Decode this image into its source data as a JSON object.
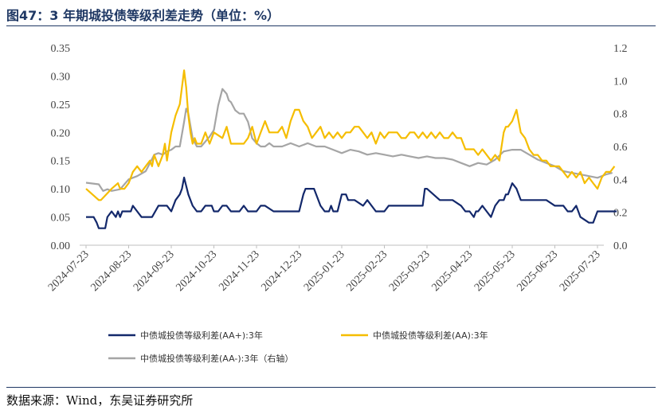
{
  "title": "图47：3 年期城投债等级利差走势（单位：%）",
  "source": "数据来源：Wind，东吴证券研究所",
  "chart_data": {
    "type": "line",
    "x_ticks": [
      "2024-07-23",
      "2024-08-23",
      "2024-09-23",
      "2024-10-23",
      "2024-11-23",
      "2024-12-23",
      "2025-01-23",
      "2025-02-23",
      "2025-03-23",
      "2025-04-23",
      "2025-05-23",
      "2025-06-23",
      "2025-07-23"
    ],
    "y_left": {
      "range": [
        0,
        0.35
      ],
      "ticks": [
        "0.00",
        "0.05",
        "0.10",
        "0.15",
        "0.20",
        "0.25",
        "0.30",
        "0.35"
      ]
    },
    "y_right": {
      "range": [
        0,
        1.2
      ],
      "ticks": [
        "0.0",
        "0.2",
        "0.4",
        "0.6",
        "0.8",
        "1.0",
        "1.2"
      ]
    },
    "series": [
      {
        "name": "中债城投债等级利差(AA+):3年",
        "axis": "left",
        "color": "#13286b",
        "x_months": [
          0,
          0.18,
          0.25,
          0.3,
          0.45,
          0.5,
          0.6,
          0.7,
          0.75,
          0.8,
          0.85,
          0.9,
          0.95,
          1.05,
          1.1,
          1.2,
          1.3,
          1.4,
          1.55,
          1.7,
          1.8,
          1.9,
          2.0,
          2.1,
          2.2,
          2.25,
          2.3,
          2.4,
          2.5,
          2.6,
          2.7,
          2.8,
          2.9,
          2.95,
          3.0,
          3.1,
          3.2,
          3.3,
          3.4,
          3.5,
          3.6,
          3.7,
          3.8,
          3.9,
          4.0,
          4.1,
          4.2,
          4.4,
          4.5,
          4.6,
          4.8,
          5.0,
          5.1,
          5.15,
          5.2,
          5.35,
          5.5,
          5.6,
          5.7,
          5.75,
          5.8,
          5.9,
          6.0,
          6.1,
          6.15,
          6.3,
          6.5,
          6.6,
          6.8,
          6.9,
          7.0,
          7.1,
          7.2,
          7.4,
          7.6,
          7.8,
          7.9,
          7.95,
          8.0,
          8.3,
          8.4,
          8.6,
          8.8,
          8.9,
          9.0,
          9.1,
          9.15,
          9.2,
          9.3,
          9.4,
          9.5,
          9.6,
          9.7,
          9.8,
          9.85,
          9.9,
          10.0,
          10.1,
          10.2,
          10.3,
          10.4,
          10.5,
          10.6,
          10.8,
          11.0,
          11.2,
          11.3,
          11.4,
          11.5,
          11.6,
          11.8,
          11.9,
          11.95,
          12.0,
          12.1,
          12.2,
          12.3,
          12.45
        ],
        "values": [
          0.05,
          0.05,
          0.04,
          0.03,
          0.03,
          0.05,
          0.06,
          0.05,
          0.06,
          0.05,
          0.06,
          0.06,
          0.06,
          0.06,
          0.07,
          0.06,
          0.05,
          0.05,
          0.05,
          0.07,
          0.07,
          0.07,
          0.06,
          0.08,
          0.09,
          0.1,
          0.12,
          0.09,
          0.07,
          0.06,
          0.06,
          0.07,
          0.07,
          0.07,
          0.06,
          0.06,
          0.07,
          0.07,
          0.06,
          0.06,
          0.06,
          0.07,
          0.06,
          0.06,
          0.06,
          0.07,
          0.07,
          0.06,
          0.06,
          0.06,
          0.06,
          0.06,
          0.09,
          0.1,
          0.1,
          0.1,
          0.07,
          0.06,
          0.06,
          0.07,
          0.06,
          0.06,
          0.09,
          0.09,
          0.08,
          0.08,
          0.07,
          0.08,
          0.06,
          0.06,
          0.06,
          0.07,
          0.07,
          0.07,
          0.07,
          0.07,
          0.07,
          0.1,
          0.1,
          0.08,
          0.08,
          0.08,
          0.07,
          0.06,
          0.06,
          0.05,
          0.06,
          0.06,
          0.07,
          0.06,
          0.05,
          0.07,
          0.08,
          0.08,
          0.09,
          0.09,
          0.11,
          0.1,
          0.08,
          0.08,
          0.08,
          0.08,
          0.08,
          0.08,
          0.07,
          0.07,
          0.06,
          0.06,
          0.07,
          0.05,
          0.04,
          0.04,
          0.05,
          0.06,
          0.06,
          0.06,
          0.06,
          0.06
        ]
      },
      {
        "name": "中债城投债等级利差(AA):3年",
        "axis": "left",
        "color": "#f5bd00",
        "x_months": [
          0,
          0.3,
          0.35,
          0.6,
          0.75,
          0.8,
          0.9,
          1.0,
          1.05,
          1.1,
          1.2,
          1.3,
          1.4,
          1.5,
          1.55,
          1.6,
          1.7,
          1.8,
          1.85,
          1.9,
          2.0,
          2.1,
          2.2,
          2.3,
          2.35,
          2.4,
          2.45,
          2.5,
          2.55,
          2.6,
          2.7,
          2.8,
          2.9,
          3.0,
          3.2,
          3.3,
          3.4,
          3.5,
          3.6,
          3.7,
          3.8,
          3.9,
          4.0,
          4.1,
          4.2,
          4.3,
          4.4,
          4.5,
          4.6,
          4.7,
          4.8,
          4.9,
          5.0,
          5.1,
          5.2,
          5.3,
          5.4,
          5.5,
          5.6,
          5.7,
          5.8,
          5.9,
          6.0,
          6.1,
          6.2,
          6.3,
          6.4,
          6.5,
          6.6,
          6.7,
          6.8,
          6.9,
          7.0,
          7.1,
          7.2,
          7.3,
          7.4,
          7.5,
          7.6,
          7.7,
          7.8,
          7.9,
          8.0,
          8.1,
          8.2,
          8.3,
          8.4,
          8.5,
          8.6,
          8.7,
          8.8,
          8.9,
          9.0,
          9.1,
          9.2,
          9.3,
          9.4,
          9.5,
          9.6,
          9.7,
          9.8,
          9.85,
          9.9,
          10.0,
          10.1,
          10.2,
          10.3,
          10.4,
          10.5,
          10.6,
          10.7,
          10.8,
          10.9,
          11.0,
          11.1,
          11.2,
          11.3,
          11.4,
          11.5,
          11.6,
          11.7,
          11.8,
          11.9,
          12.0,
          12.1,
          12.2,
          12.3,
          12.4
        ],
        "values": [
          0.1,
          0.08,
          0.08,
          0.1,
          0.11,
          0.1,
          0.1,
          0.11,
          0.12,
          0.13,
          0.14,
          0.13,
          0.14,
          0.15,
          0.14,
          0.16,
          0.14,
          0.16,
          0.18,
          0.15,
          0.2,
          0.23,
          0.25,
          0.31,
          0.28,
          0.23,
          0.2,
          0.18,
          0.19,
          0.18,
          0.18,
          0.2,
          0.18,
          0.2,
          0.19,
          0.21,
          0.18,
          0.18,
          0.18,
          0.18,
          0.19,
          0.21,
          0.18,
          0.2,
          0.22,
          0.2,
          0.2,
          0.2,
          0.21,
          0.19,
          0.22,
          0.24,
          0.24,
          0.22,
          0.21,
          0.19,
          0.2,
          0.21,
          0.19,
          0.2,
          0.19,
          0.2,
          0.19,
          0.2,
          0.2,
          0.21,
          0.21,
          0.2,
          0.19,
          0.2,
          0.18,
          0.2,
          0.19,
          0.2,
          0.2,
          0.2,
          0.19,
          0.19,
          0.2,
          0.2,
          0.19,
          0.2,
          0.19,
          0.2,
          0.19,
          0.2,
          0.19,
          0.19,
          0.2,
          0.19,
          0.19,
          0.17,
          0.17,
          0.17,
          0.16,
          0.17,
          0.16,
          0.15,
          0.16,
          0.15,
          0.2,
          0.21,
          0.21,
          0.22,
          0.24,
          0.2,
          0.19,
          0.17,
          0.16,
          0.16,
          0.15,
          0.15,
          0.14,
          0.14,
          0.14,
          0.13,
          0.12,
          0.13,
          0.12,
          0.13,
          0.11,
          0.12,
          0.11,
          0.1,
          0.12,
          0.13,
          0.13,
          0.14
        ]
      },
      {
        "name": "中债城投债等级利差(AA-):3年（右轴）",
        "axis": "right",
        "color": "#a5a5a5",
        "x_months": [
          0,
          0.3,
          0.4,
          0.5,
          0.6,
          0.8,
          1.0,
          1.2,
          1.4,
          1.5,
          1.6,
          1.7,
          1.8,
          1.9,
          2.0,
          2.1,
          2.2,
          2.3,
          2.35,
          2.4,
          2.5,
          2.6,
          2.7,
          2.8,
          2.9,
          3.0,
          3.1,
          3.2,
          3.3,
          3.35,
          3.4,
          3.5,
          3.6,
          3.7,
          3.8,
          3.9,
          4.0,
          4.1,
          4.2,
          4.3,
          4.4,
          4.6,
          4.8,
          5.0,
          5.2,
          5.4,
          5.6,
          5.8,
          6.0,
          6.2,
          6.4,
          6.6,
          6.8,
          7.0,
          7.2,
          7.4,
          7.6,
          7.8,
          8.0,
          8.2,
          8.4,
          8.6,
          8.8,
          9.0,
          9.2,
          9.4,
          9.6,
          9.8,
          10.0,
          10.2,
          10.4,
          10.6,
          10.8,
          11.0,
          11.2,
          11.4,
          11.6,
          11.8,
          12.0,
          12.2,
          12.35
        ],
        "values": [
          0.38,
          0.37,
          0.33,
          0.34,
          0.33,
          0.34,
          0.4,
          0.42,
          0.45,
          0.5,
          0.55,
          0.56,
          0.55,
          0.57,
          0.58,
          0.6,
          0.6,
          0.75,
          0.83,
          0.8,
          0.65,
          0.6,
          0.6,
          0.63,
          0.66,
          0.7,
          0.85,
          0.95,
          0.92,
          0.88,
          0.87,
          0.82,
          0.8,
          0.8,
          0.75,
          0.65,
          0.62,
          0.6,
          0.6,
          0.62,
          0.6,
          0.6,
          0.62,
          0.6,
          0.62,
          0.6,
          0.6,
          0.58,
          0.56,
          0.58,
          0.57,
          0.55,
          0.56,
          0.55,
          0.54,
          0.55,
          0.54,
          0.53,
          0.54,
          0.53,
          0.53,
          0.52,
          0.5,
          0.48,
          0.5,
          0.49,
          0.52,
          0.57,
          0.58,
          0.58,
          0.55,
          0.52,
          0.5,
          0.48,
          0.45,
          0.44,
          0.43,
          0.42,
          0.41,
          0.43,
          0.44
        ]
      }
    ],
    "legend": [
      {
        "label": "中债城投债等级利差(AA+):3年",
        "color": "#13286b"
      },
      {
        "label": "中债城投债等级利差(AA):3年",
        "color": "#f5bd00"
      },
      {
        "label": "中债城投债等级利差(AA-):3年（右轴）",
        "color": "#a5a5a5"
      }
    ]
  }
}
